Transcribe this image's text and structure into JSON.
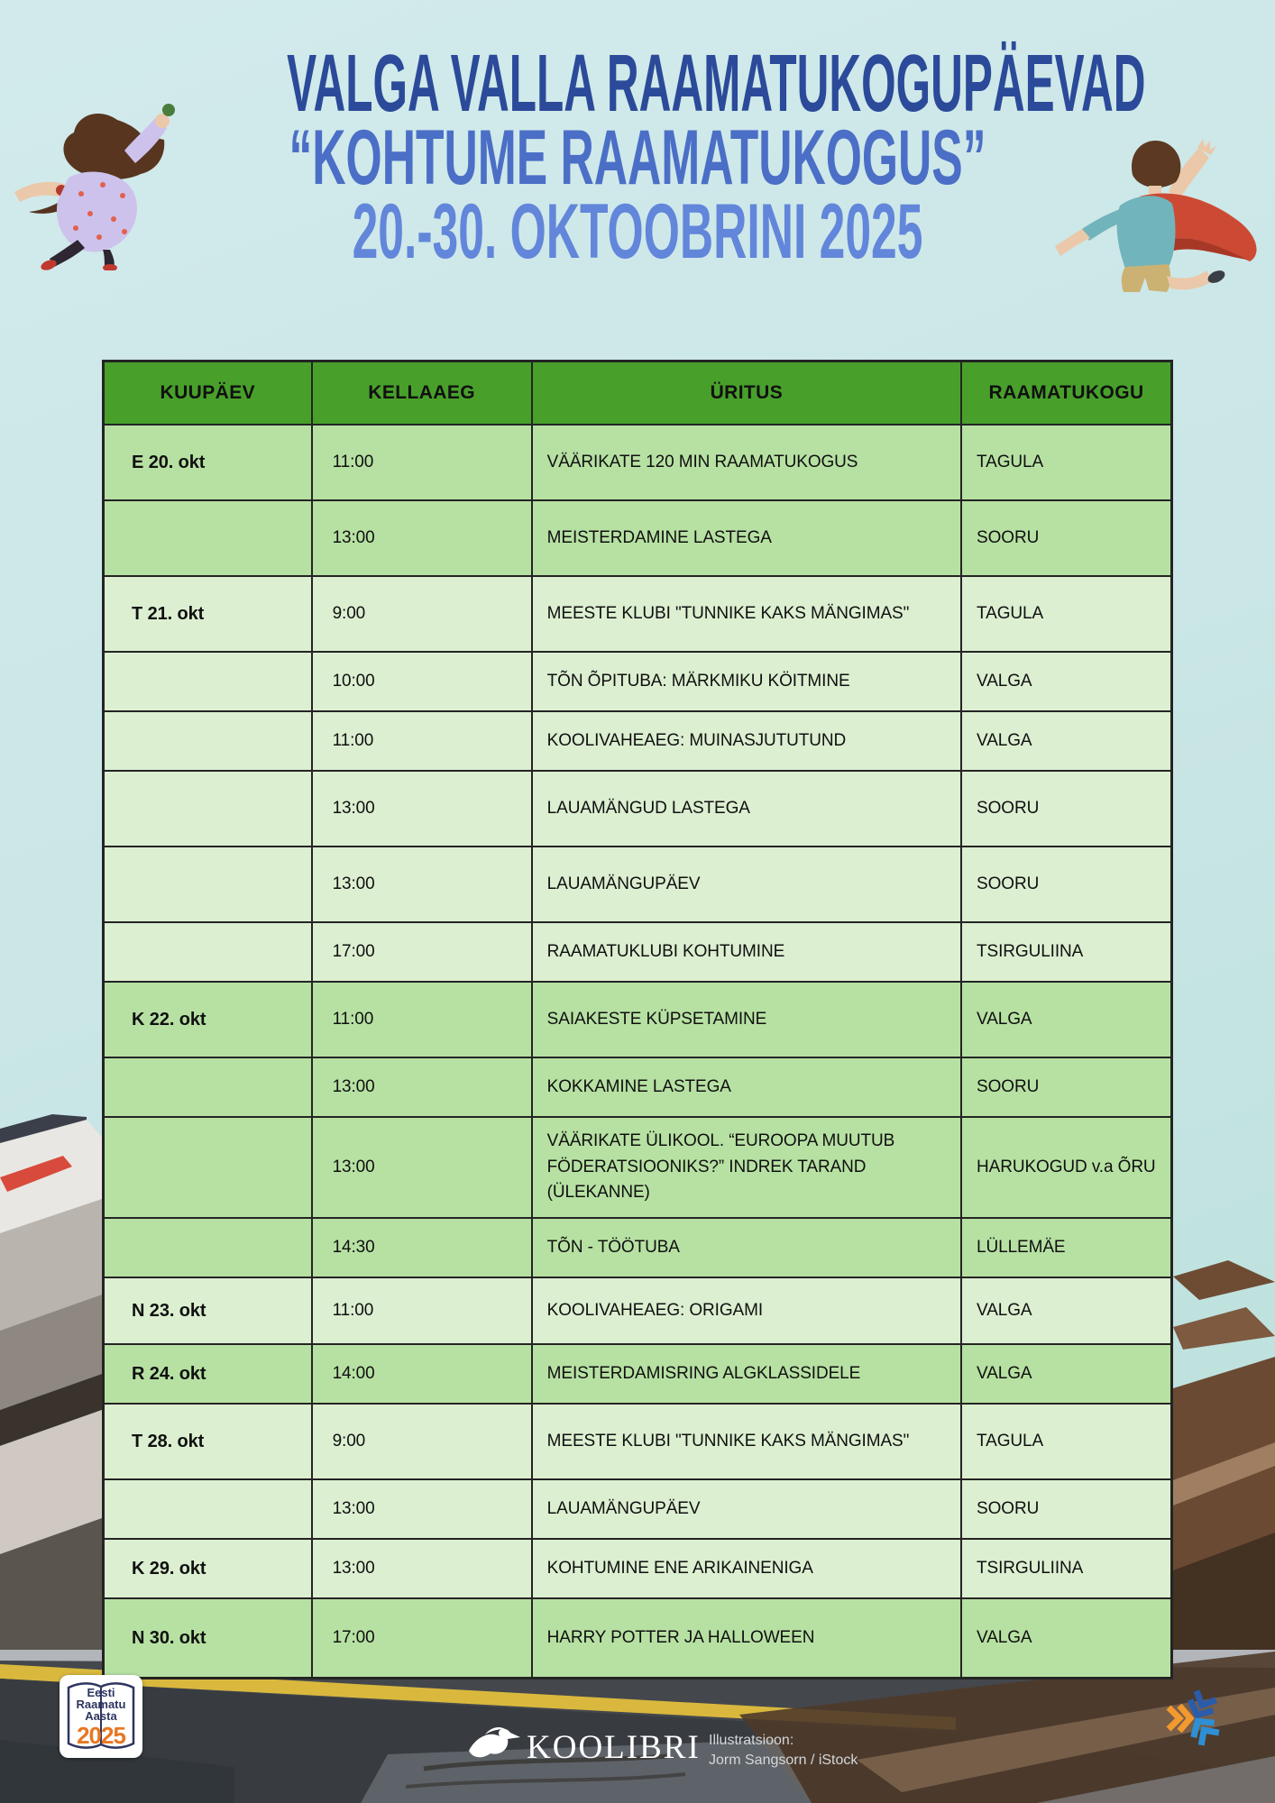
{
  "title": {
    "line1": "VALGA VALLA RAAMATUKOGUPÄEVAD",
    "line2": "“KOHTUME RAAMATUKOGUS”",
    "line3": "20.-30. OKTOOBRINI 2025"
  },
  "table": {
    "headers": [
      "KUUPÄEV",
      "KELLAAEG",
      "ÜRITUS",
      "RAAMATUKOGU"
    ],
    "rows": [
      {
        "date": "E 20. okt",
        "time": "11:00",
        "event": "VÄÄRIKATE 120 MIN RAAMATUKOGUS",
        "library": "TAGULA",
        "shade": "medium"
      },
      {
        "date": "",
        "time": "13:00",
        "event": "MEISTERDAMINE LASTEGA",
        "library": "SOORU",
        "shade": "medium"
      },
      {
        "date": "T 21. okt",
        "time": "9:00",
        "event": "MEESTE KLUBI \"TUNNIKE KAKS MÄNGIMAS\"",
        "library": "TAGULA",
        "shade": "light"
      },
      {
        "date": "",
        "time": "10:00",
        "event": "TÕN ÕPITUBA: MÄRKMIKU KÖITMINE",
        "library": "VALGA",
        "shade": "light"
      },
      {
        "date": "",
        "time": "11:00",
        "event": "KOOLIVAHEAEG: MUINASJUTUTUND",
        "library": "VALGA",
        "shade": "light"
      },
      {
        "date": "",
        "time": "13:00",
        "event": "LAUAMÄNGUD LASTEGA",
        "library": "SOORU",
        "shade": "light"
      },
      {
        "date": "",
        "time": "13:00",
        "event": "LAUAMÄNGUPÄEV",
        "library": "SOORU",
        "shade": "light"
      },
      {
        "date": "",
        "time": "17:00",
        "event": "RAAMATUKLUBI KOHTUMINE",
        "library": "TSIRGULIINA",
        "shade": "light"
      },
      {
        "date": "K 22. okt",
        "time": "11:00",
        "event": "SAIAKESTE KÜPSETAMINE",
        "library": "VALGA",
        "shade": "medium"
      },
      {
        "date": "",
        "time": "13:00",
        "event": "KOKKAMINE LASTEGA",
        "library": "SOORU",
        "shade": "medium"
      },
      {
        "date": "",
        "time": "13:00",
        "event": "VÄÄRIKATE ÜLIKOOL. “EUROOPA MUUTUB FÖDERATSIOONIKS?” INDREK TARAND (ÜLEKANNE)",
        "library": "HARUKOGUD v.a ÕRU",
        "shade": "medium"
      },
      {
        "date": "",
        "time": "14:30",
        "event": "TÕN - TÖÖTUBA",
        "library": "LÜLLEMÄE",
        "shade": "medium"
      },
      {
        "date": "N 23. okt",
        "time": "11:00",
        "event": "KOOLIVAHEAEG: ORIGAMI",
        "library": "VALGA",
        "shade": "light"
      },
      {
        "date": "R 24. okt",
        "time": "14:00",
        "event": "MEISTERDAMISRING ALGKLASSIDELE",
        "library": "VALGA",
        "shade": "medium"
      },
      {
        "date": "T 28. okt",
        "time": "9:00",
        "event": "MEESTE KLUBI \"TUNNIKE KAKS MÄNGIMAS\"",
        "library": "TAGULA",
        "shade": "light"
      },
      {
        "date": "",
        "time": "13:00",
        "event": "LAUAMÄNGUPÄEV",
        "library": "SOORU",
        "shade": "light"
      },
      {
        "date": "K 29. okt",
        "time": "13:00",
        "event": "KOHTUMINE ENE ARIKAINENIGA",
        "library": "TSIRGULIINA",
        "shade": "light"
      },
      {
        "date": "N 30. okt",
        "time": "17:00",
        "event": "HARRY POTTER JA HALLOWEEN",
        "library": "VALGA",
        "shade": "medium"
      }
    ]
  },
  "footer": {
    "badge": {
      "line1": "Eesti",
      "line2": "Raamatu",
      "line3": "Aasta",
      "year": "2025"
    },
    "publisher": "KOOLIBRI",
    "credit_label": "Illustratsioon:",
    "credit_value": "Jorm Sangsorn / iStock"
  },
  "colors": {
    "background": "#cde8ea",
    "title_dark_blue": "#2b4a99",
    "title_mid_blue": "#4b6fc6",
    "title_light_blue": "#6286da",
    "header_green": "#48a02b",
    "row_green_medium": "#b7e1a3",
    "row_green_light": "#dcefd1",
    "badge_navy": "#2e3560",
    "badge_orange": "#e87722"
  }
}
